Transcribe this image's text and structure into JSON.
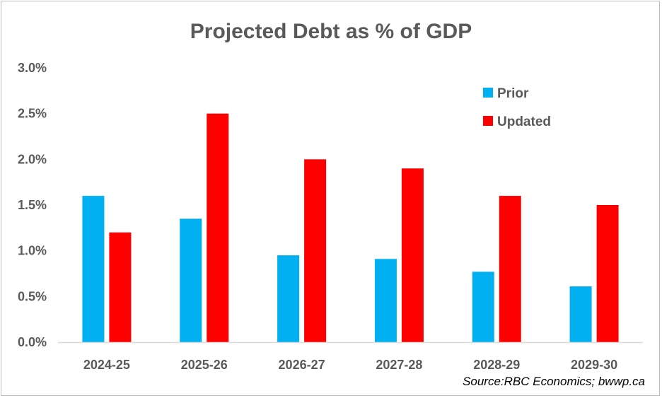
{
  "chart_data": {
    "type": "bar",
    "title": "Projected Debt as % of GDP",
    "xlabel": "",
    "ylabel": "",
    "categories": [
      "2024-25",
      "2025-26",
      "2026-27",
      "2027-28",
      "2028-29",
      "2029-30"
    ],
    "series": [
      {
        "name": "Prior",
        "color": "#00b0f0",
        "values": [
          1.6,
          1.35,
          0.95,
          0.91,
          0.77,
          0.61
        ]
      },
      {
        "name": "Updated",
        "color": "#ff0000",
        "values": [
          1.2,
          2.5,
          2.0,
          1.9,
          1.6,
          1.5
        ]
      }
    ],
    "ylim": [
      0,
      3.0
    ],
    "yticks": [
      {
        "value": 0,
        "label": "0.0%"
      },
      {
        "value": 0.5,
        "label": "0.5%"
      },
      {
        "value": 1.0,
        "label": "1.0%"
      },
      {
        "value": 1.5,
        "label": "1.5%"
      },
      {
        "value": 2.0,
        "label": "2.0%"
      },
      {
        "value": 2.5,
        "label": "2.5%"
      },
      {
        "value": 3.0,
        "label": "3.0%"
      }
    ],
    "grid": false,
    "legend_position": "top-right",
    "source": "Source:RBC Economics; bwwp.ca"
  }
}
